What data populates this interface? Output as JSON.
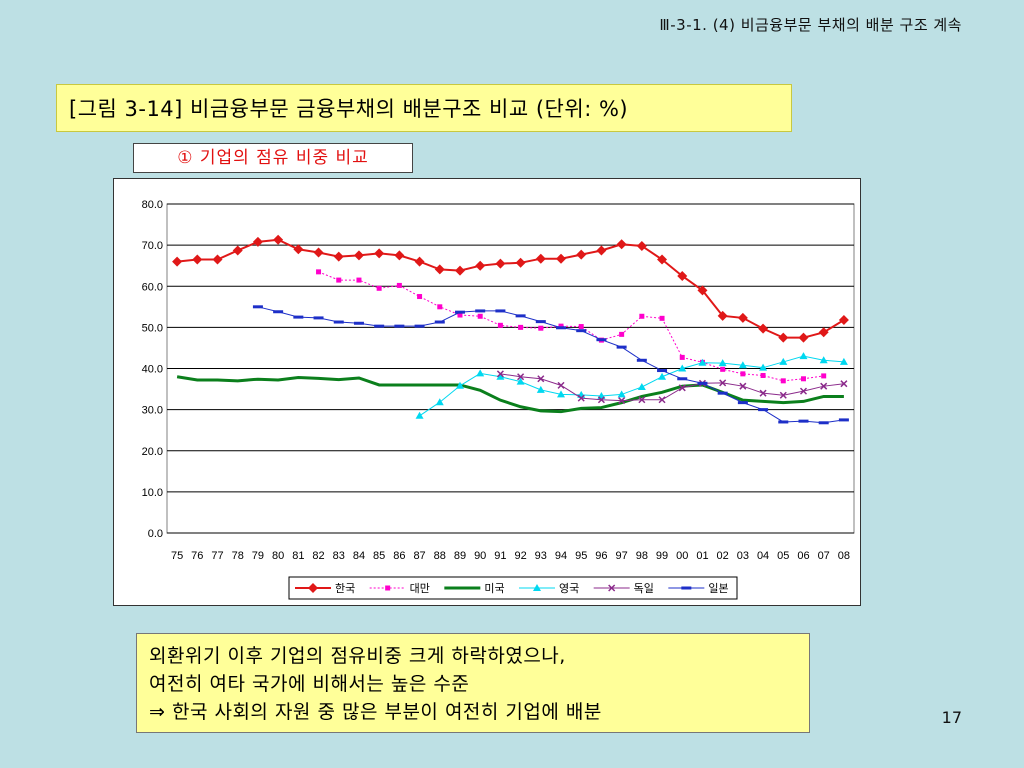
{
  "header": {
    "note": "Ⅲ-3-1. (4) 비금융부문 부채의 배분 구조 계속"
  },
  "figure": {
    "title": "[그림 3-14] 비금융부문 금융부채의 배분구조 비교 (단위: %)",
    "subtitle": "① 기업의 점유 비중 비교"
  },
  "note": {
    "lines": [
      "외환위기 이후 기업의 점유비중 크게 하락하였으나,",
      "여전히 여타 국가에 비해서는 높은 수준",
      "⇒ 한국 사회의 자원 중 많은 부분이 여전히 기업에 배분"
    ]
  },
  "page_number": "17",
  "chart_data": {
    "type": "line",
    "title": "",
    "xlabel": "",
    "ylabel": "",
    "ylim": [
      0,
      80
    ],
    "yticks": [
      "0.0",
      "10.0",
      "20.0",
      "30.0",
      "40.0",
      "50.0",
      "60.0",
      "70.0",
      "80.0"
    ],
    "grid": true,
    "legend_position": "bottom",
    "categories": [
      "75",
      "76",
      "77",
      "78",
      "79",
      "80",
      "81",
      "82",
      "83",
      "84",
      "85",
      "86",
      "87",
      "88",
      "89",
      "90",
      "91",
      "92",
      "93",
      "94",
      "95",
      "96",
      "97",
      "98",
      "99",
      "00",
      "01",
      "02",
      "03",
      "04",
      "05",
      "06",
      "07",
      "08"
    ],
    "series": [
      {
        "name": "한국",
        "color": "#e01818",
        "marker": "diamond",
        "dash": "solid",
        "width": 2,
        "values": [
          66.0,
          66.5,
          66.5,
          68.7,
          70.8,
          71.3,
          69.0,
          68.2,
          67.2,
          67.5,
          68.0,
          67.5,
          66.0,
          64.1,
          63.8,
          65.0,
          65.5,
          65.7,
          66.7,
          66.7,
          67.7,
          68.7,
          70.2,
          69.8,
          66.5,
          62.5,
          59.0,
          52.8,
          52.3,
          49.7,
          47.5,
          47.5,
          48.8,
          51.8
        ]
      },
      {
        "name": "대만",
        "color": "#ff00cc",
        "marker": "square",
        "dash": "dot",
        "width": 1,
        "values": [
          null,
          null,
          null,
          null,
          null,
          null,
          null,
          63.5,
          61.5,
          61.5,
          59.5,
          60.2,
          57.5,
          55.0,
          53.0,
          52.7,
          50.5,
          50.0,
          49.8,
          50.3,
          50.2,
          46.9,
          48.3,
          52.7,
          52.2,
          42.7,
          41.5,
          39.8,
          38.7,
          38.3,
          37.0,
          37.5,
          38.2,
          null
        ]
      },
      {
        "name": "미국",
        "color": "#0b7f1c",
        "marker": "none",
        "dash": "solid",
        "width": 3,
        "values": [
          38.0,
          37.2,
          37.2,
          37.0,
          37.4,
          37.2,
          37.8,
          37.6,
          37.3,
          37.7,
          36.0,
          36.0,
          36.0,
          36.0,
          36.0,
          34.7,
          32.3,
          30.7,
          29.7,
          29.5,
          30.3,
          30.5,
          31.7,
          33.2,
          34.2,
          35.7,
          36.0,
          34.2,
          32.3,
          32.0,
          31.7,
          32.0,
          33.2,
          33.2
        ]
      },
      {
        "name": "영국",
        "color": "#00d8f0",
        "marker": "triangle",
        "dash": "solid",
        "width": 1,
        "values": [
          null,
          null,
          null,
          null,
          null,
          null,
          null,
          null,
          null,
          null,
          null,
          null,
          28.5,
          31.8,
          35.8,
          38.8,
          38.0,
          36.8,
          34.8,
          33.7,
          33.6,
          33.3,
          33.7,
          35.5,
          38.0,
          40.0,
          41.4,
          41.3,
          40.8,
          40.2,
          41.6,
          43.0,
          42.0,
          41.6
        ]
      },
      {
        "name": "독일",
        "color": "#8b2a8b",
        "marker": "x",
        "dash": "solid",
        "width": 1,
        "values": [
          null,
          null,
          null,
          null,
          null,
          null,
          null,
          null,
          null,
          null,
          null,
          null,
          null,
          null,
          null,
          null,
          38.7,
          38.0,
          37.5,
          35.9,
          32.8,
          32.4,
          32.2,
          32.4,
          32.4,
          35.3,
          36.4,
          36.5,
          35.7,
          34.0,
          33.5,
          34.5,
          35.7,
          36.3
        ]
      },
      {
        "name": "일본",
        "color": "#1d2fc8",
        "marker": "dash",
        "dash": "solid",
        "width": 1,
        "values": [
          null,
          null,
          null,
          null,
          55.0,
          53.8,
          52.5,
          52.3,
          51.3,
          51.0,
          50.3,
          50.3,
          50.3,
          51.3,
          53.7,
          54.0,
          54.0,
          52.8,
          51.4,
          49.9,
          49.2,
          47.0,
          45.2,
          42.0,
          39.5,
          37.5,
          36.4,
          34.0,
          31.7,
          30.0,
          27.0,
          27.2,
          26.8,
          27.5
        ]
      }
    ]
  }
}
